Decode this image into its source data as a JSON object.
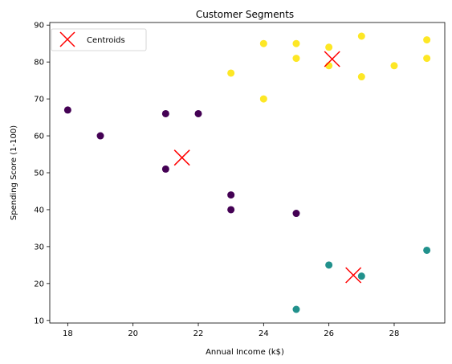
{
  "chart_data": {
    "type": "scatter",
    "title": "Customer Segments",
    "xlabel": "Annual Income (k$)",
    "ylabel": "Spending Score (1-100)",
    "xlim": [
      17.45,
      29.55
    ],
    "ylim": [
      9.3,
      90.7
    ],
    "xticks": [
      18,
      20,
      22,
      24,
      26,
      28
    ],
    "yticks": [
      10,
      20,
      30,
      40,
      50,
      60,
      70,
      80,
      90
    ],
    "grid": false,
    "legend_position": "upper-left",
    "clusters": [
      {
        "color": "#440154",
        "points": [
          [
            18,
            67
          ],
          [
            19,
            60
          ],
          [
            21,
            66
          ],
          [
            22,
            66
          ],
          [
            21,
            51
          ],
          [
            23,
            44
          ],
          [
            23,
            40
          ],
          [
            25,
            39
          ]
        ]
      },
      {
        "color": "#21918c",
        "points": [
          [
            25,
            13
          ],
          [
            26,
            25
          ],
          [
            27,
            22
          ],
          [
            29,
            29
          ]
        ]
      },
      {
        "color": "#fde725",
        "points": [
          [
            23,
            77
          ],
          [
            24,
            85
          ],
          [
            24,
            70
          ],
          [
            25,
            85
          ],
          [
            25,
            81
          ],
          [
            26,
            84
          ],
          [
            26,
            79
          ],
          [
            27,
            87
          ],
          [
            27,
            76
          ],
          [
            28,
            79
          ],
          [
            29,
            86
          ],
          [
            29,
            81
          ]
        ]
      }
    ],
    "centroids": {
      "name": "Centroids",
      "color": "#ff0000",
      "marker": "x",
      "points": [
        [
          21.5,
          54.1
        ],
        [
          26.1,
          80.8
        ],
        [
          26.75,
          22.25
        ]
      ]
    }
  }
}
